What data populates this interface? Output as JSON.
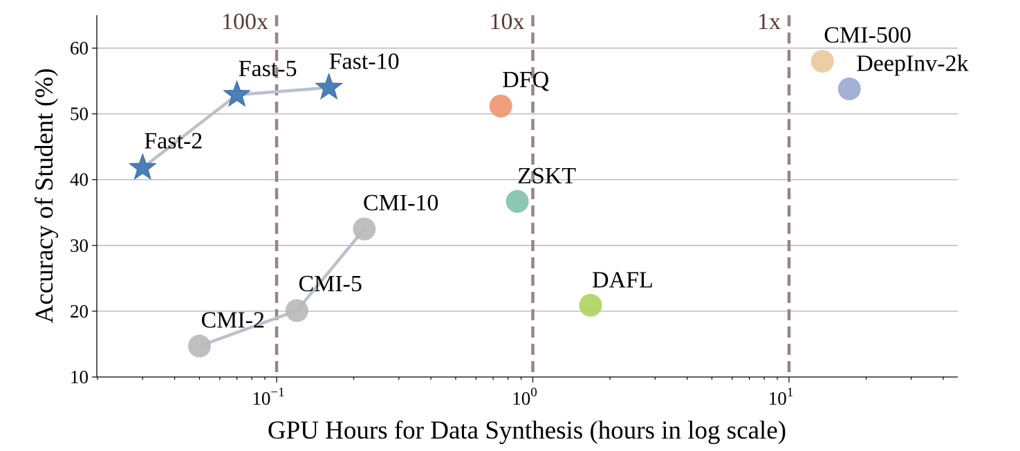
{
  "chart_data": {
    "type": "scatter",
    "xlabel": "GPU Hours for Data Synthesis (hours in log scale)",
    "ylabel": "Accuracy of Student (%)",
    "xscale": "log",
    "xlim": [
      0.02,
      45
    ],
    "ylim": [
      10,
      65
    ],
    "grid": "horizontal",
    "yticks": [
      10,
      20,
      30,
      40,
      50,
      60
    ],
    "xticks": [
      {
        "value": 0.1,
        "base": "10",
        "exp": "−1"
      },
      {
        "value": 1,
        "base": "10",
        "exp": "0"
      },
      {
        "value": 10,
        "base": "10",
        "exp": "1"
      }
    ],
    "reference_lines": [
      {
        "x": 0.1,
        "label": "100x"
      },
      {
        "x": 1,
        "label": "10x"
      },
      {
        "x": 10,
        "label": "1x"
      }
    ],
    "points": [
      {
        "name": "Fast-2",
        "x": 0.03,
        "y": 41.8,
        "marker": "star",
        "color": "#4a7fb8",
        "group": "fast"
      },
      {
        "name": "Fast-5",
        "x": 0.07,
        "y": 52.9,
        "marker": "star",
        "color": "#4a7fb8",
        "group": "fast"
      },
      {
        "name": "Fast-10",
        "x": 0.16,
        "y": 54.0,
        "marker": "star",
        "color": "#4a7fb8",
        "group": "fast"
      },
      {
        "name": "CMI-2",
        "x": 0.05,
        "y": 14.7,
        "marker": "circle",
        "color": "#b8b8b8",
        "group": "cmi"
      },
      {
        "name": "CMI-5",
        "x": 0.12,
        "y": 20.1,
        "marker": "circle",
        "color": "#b8b8b8",
        "group": "cmi"
      },
      {
        "name": "CMI-10",
        "x": 0.22,
        "y": 32.5,
        "marker": "circle",
        "color": "#b8b8b8",
        "group": "cmi"
      },
      {
        "name": "DFQ",
        "x": 0.75,
        "y": 51.2,
        "marker": "circle",
        "color": "#ee9570"
      },
      {
        "name": "ZSKT",
        "x": 0.87,
        "y": 36.7,
        "marker": "circle",
        "color": "#82c1a8"
      },
      {
        "name": "DAFL",
        "x": 1.68,
        "y": 20.9,
        "marker": "circle",
        "color": "#acd35f"
      },
      {
        "name": "CMI-500",
        "x": 13.5,
        "y": 58.0,
        "marker": "circle",
        "color": "#e9c89c"
      },
      {
        "name": "DeepInv-2k",
        "x": 17.2,
        "y": 53.8,
        "marker": "circle",
        "color": "#99a8cf"
      }
    ],
    "connectors": [
      {
        "group": "fast",
        "color": "#b9c1cc"
      },
      {
        "group": "cmi",
        "color": "#b9c1cc"
      }
    ]
  }
}
